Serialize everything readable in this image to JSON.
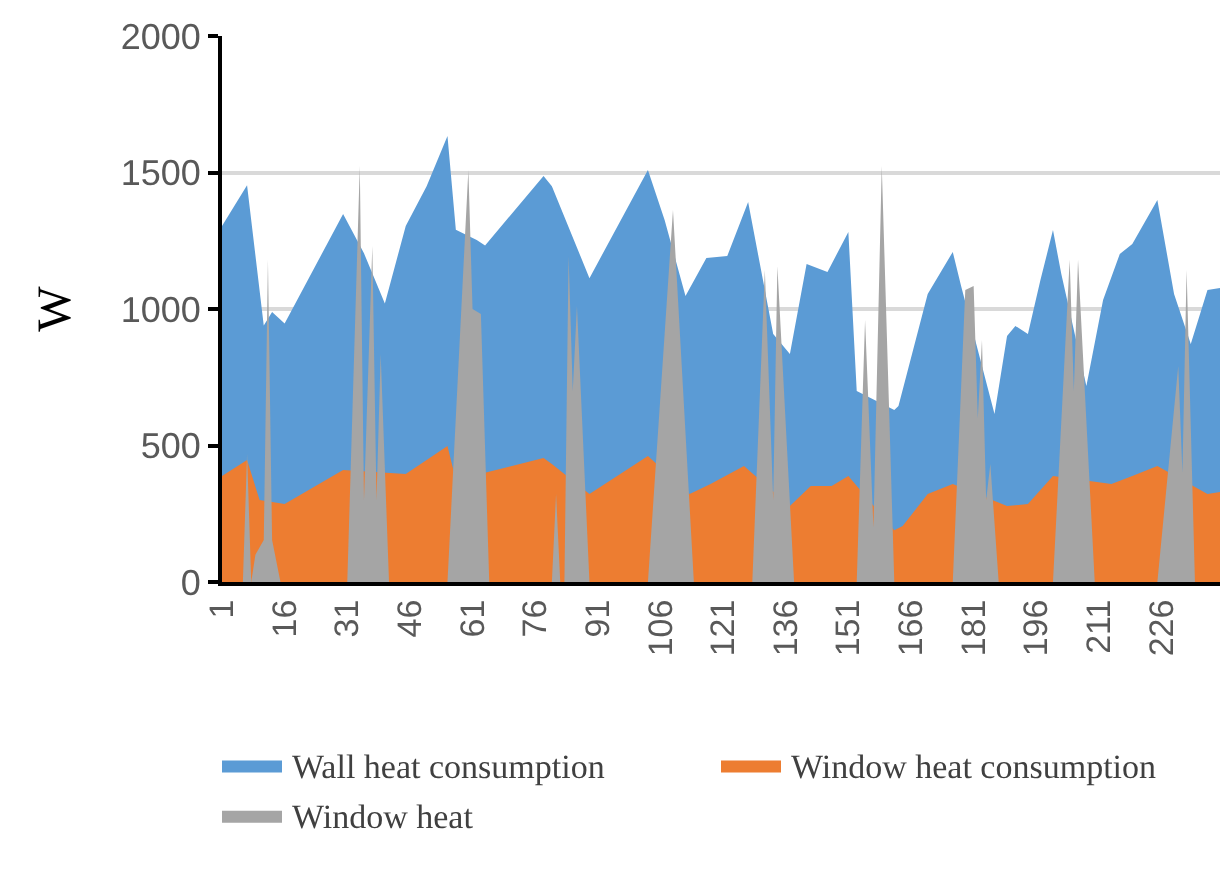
{
  "chart_data": {
    "type": "area",
    "ylabel": "W",
    "xlim": [
      1,
      240
    ],
    "xticks": [
      1,
      16,
      31,
      46,
      61,
      76,
      91,
      106,
      121,
      136,
      151,
      166,
      181,
      196,
      211,
      226
    ],
    "ylim": [
      0,
      2000
    ],
    "yticks": [
      0,
      500,
      1000,
      1500,
      2000
    ],
    "grid": "y",
    "legend": "bottom",
    "series": [
      {
        "name": "Wall heat consumption",
        "color": "#5b9bd5",
        "x": [
          1,
          7,
          11,
          13,
          16,
          30,
          35,
          40,
          45,
          50,
          55,
          57,
          62,
          64,
          78,
          80,
          89,
          103,
          107,
          112,
          117,
          122,
          127,
          133,
          137,
          141,
          146,
          151,
          153,
          162,
          163,
          170,
          176,
          178,
          186,
          189,
          191,
          194,
          197,
          200,
          202,
          208,
          212,
          216,
          219,
          225,
          229,
          233,
          237,
          240
        ],
        "values": [
          1304,
          1453,
          940,
          989,
          947,
          1348,
          1204,
          1020,
          1304,
          1450,
          1634,
          1290,
          1253,
          1233,
          1487,
          1450,
          1113,
          1509,
          1326,
          1048,
          1187,
          1194,
          1392,
          908,
          835,
          1165,
          1136,
          1282,
          700,
          630,
          645,
          1055,
          1209,
          1084,
          615,
          901,
          938,
          908,
          1106,
          1289,
          1128,
          718,
          1033,
          1201,
          1238,
          1399,
          1055,
          872,
          1070,
          1077
        ]
      },
      {
        "name": "Window heat consumption",
        "color": "#ed7d31",
        "x": [
          1,
          7,
          10,
          16,
          30,
          45,
          50,
          55,
          57,
          78,
          80,
          89,
          103,
          113,
          118,
          126,
          137,
          142,
          147,
          151,
          162,
          164,
          170,
          176,
          189,
          194,
          200,
          214,
          219,
          225,
          237,
          240
        ],
        "values": [
          388,
          447,
          300,
          286,
          410,
          396,
          447,
          498,
          374,
          454,
          432,
          322,
          462,
          322,
          359,
          425,
          278,
          352,
          352,
          388,
          190,
          205,
          322,
          359,
          278,
          286,
          388,
          359,
          388,
          425,
          322,
          330
        ]
      },
      {
        "name": "Window heat",
        "color": "#a5a5a5",
        "x": [
          1,
          6,
          7,
          8,
          9,
          11,
          12,
          13,
          15,
          31,
          34,
          35,
          37,
          38,
          39,
          41,
          55,
          60,
          61,
          63,
          65,
          80,
          81,
          82,
          83,
          84,
          85,
          86,
          89,
          103,
          109,
          114,
          128,
          131,
          133,
          134,
          138,
          153,
          155,
          157,
          159,
          162,
          176,
          179,
          181,
          182,
          183,
          184,
          185,
          187,
          200,
          204,
          205,
          206,
          210,
          225,
          230,
          231,
          232,
          234,
          240
        ],
        "values": [
          0,
          0,
          469,
          0,
          100,
          154,
          1180,
          154,
          0,
          0,
          1524,
          300,
          1231,
          300,
          835,
          0,
          0,
          1509,
          1000,
          982,
          0,
          0,
          322,
          0,
          0,
          1194,
          700,
          1011,
          0,
          0,
          1363,
          0,
          0,
          1143,
          300,
          1157,
          0,
          0,
          960,
          200,
          1524,
          0,
          0,
          1070,
          1084,
          600,
          886,
          300,
          432,
          0,
          0,
          1180,
          700,
          1180,
          0,
          0,
          791,
          400,
          1143,
          0,
          0
        ]
      }
    ]
  }
}
